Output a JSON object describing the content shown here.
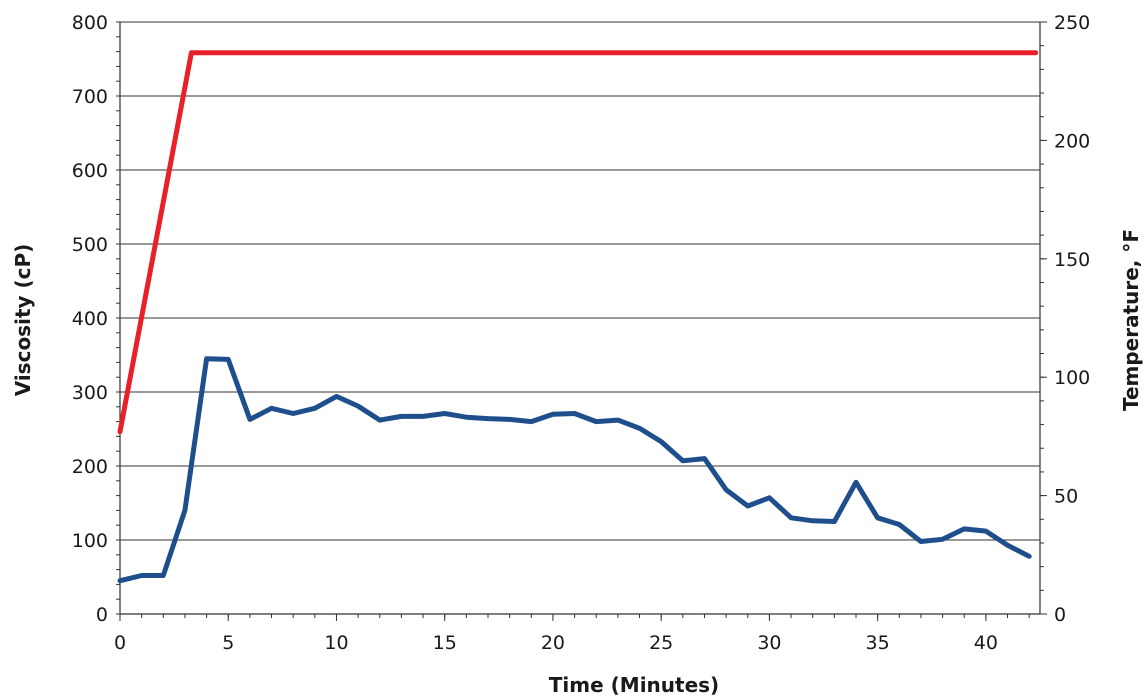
{
  "chart_data": {
    "type": "line",
    "title": "",
    "xlabel": "Time (Minutes)",
    "ylabel": "Viscosity (cP)",
    "y2label": "Temperature, °F",
    "xlim": [
      0,
      42.5
    ],
    "ylim": [
      0,
      800
    ],
    "y2lim": [
      0,
      250
    ],
    "x_ticks": [
      0,
      5,
      10,
      15,
      20,
      25,
      30,
      35,
      40
    ],
    "y_ticks": [
      0,
      100,
      200,
      300,
      400,
      500,
      600,
      700,
      800
    ],
    "y2_ticks": [
      0,
      50,
      100,
      150,
      200,
      250
    ],
    "grid": "horizontal",
    "legend": "none",
    "series": [
      {
        "axis": "left",
        "color": "#1f4e8c",
        "x": [
          0,
          1,
          2,
          3,
          4,
          5,
          6,
          7,
          8,
          9,
          10,
          11,
          12,
          13,
          14,
          15,
          16,
          17,
          18,
          19,
          20,
          21,
          22,
          23,
          24,
          25,
          26,
          27,
          28,
          29,
          30,
          31,
          32,
          33,
          34,
          35,
          36,
          37,
          38,
          39,
          40,
          41,
          42
        ],
        "values": [
          45,
          52,
          52,
          140,
          345,
          344,
          263,
          278,
          271,
          278,
          294,
          281,
          262,
          267,
          267,
          271,
          266,
          264,
          263,
          260,
          270,
          271,
          260,
          262,
          251,
          233,
          207,
          210,
          168,
          146,
          157,
          130,
          126,
          125,
          178,
          130,
          121,
          98,
          101,
          115,
          112,
          93,
          78
        ]
      },
      {
        "axis": "right",
        "color": "#e8202a",
        "x": [
          0,
          3.3,
          42.3
        ],
        "values": [
          77,
          237,
          237
        ]
      }
    ]
  }
}
